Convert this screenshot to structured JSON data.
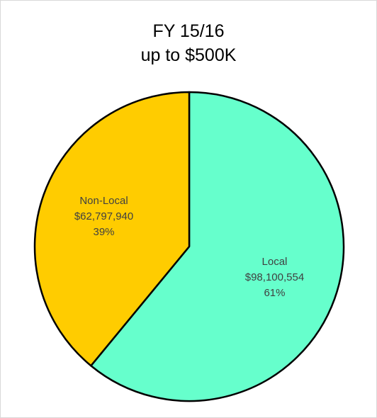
{
  "chart_data": {
    "type": "pie",
    "title_lines": [
      "FY 15/16",
      "up to $500K"
    ],
    "slices": [
      {
        "name": "Local",
        "value": 98100554,
        "value_label": "$98,100,554",
        "percent_label": "61%",
        "color": "#66FFCC"
      },
      {
        "name": "Non-Local",
        "value": 62797940,
        "value_label": "$62,797,940",
        "percent_label": "39%",
        "color": "#FFCC00"
      }
    ],
    "start_angle_deg": 0,
    "direction": "clockwise",
    "legend": "none",
    "border_color": "#000000"
  }
}
